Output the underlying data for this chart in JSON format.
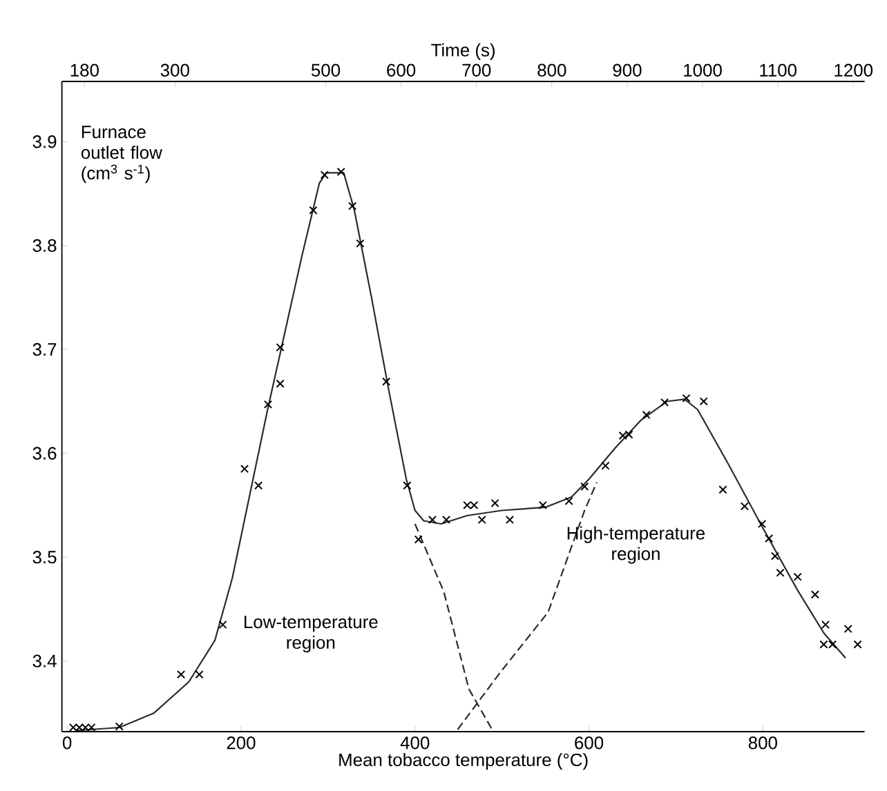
{
  "chart_data": {
    "type": "scatter",
    "xlabel": "Mean tobacco temperature (°C)",
    "ylabel": "Furnace outlet flow (cm$^{3}$ s$^{-1}$)",
    "x2label": "Time (s)",
    "xlim": [
      -6,
      917
    ],
    "ylim": [
      3.332,
      3.958
    ],
    "xticks": [
      0,
      200,
      400,
      600,
      800
    ],
    "yticks": [
      3.4,
      3.5,
      3.6,
      3.7,
      3.8,
      3.9
    ],
    "x2lim": [
      150,
      1215
    ],
    "x2ticks": [
      180,
      300,
      500,
      600,
      700,
      800,
      900,
      1000,
      1100,
      1200
    ],
    "marker": "cross",
    "series": [
      {
        "color": "#000000",
        "x": [
          7,
          14,
          21,
          28,
          60,
          131,
          152,
          179,
          204,
          220,
          231,
          245,
          245,
          283,
          296,
          315,
          328,
          337,
          367,
          391,
          404,
          420,
          436,
          460,
          468,
          477,
          492,
          509,
          547,
          577,
          595,
          619,
          639,
          646,
          666,
          687,
          712,
          732,
          754,
          779,
          799,
          807,
          814,
          820,
          840,
          860,
          872,
          898,
          870,
          880,
          909
        ],
        "values": [
          3.336,
          3.336,
          3.336,
          3.336,
          3.337,
          3.387,
          3.387,
          3.435,
          3.585,
          3.569,
          3.647,
          3.667,
          3.702,
          3.834,
          3.868,
          3.871,
          3.838,
          3.802,
          3.669,
          3.569,
          3.517,
          3.536,
          3.536,
          3.55,
          3.55,
          3.536,
          3.552,
          3.536,
          3.55,
          3.554,
          3.568,
          3.588,
          3.617,
          3.618,
          3.637,
          3.649,
          3.653,
          3.65,
          3.565,
          3.549,
          3.532,
          3.518,
          3.501,
          3.485,
          3.481,
          3.464,
          3.435,
          3.431,
          3.416,
          3.416,
          3.416
        ]
      },
      {
        "type": "line",
        "color": "#2a2a2a",
        "line_style": "solid",
        "marker": "none",
        "x": [
          10,
          60,
          100,
          140,
          170,
          190,
          210,
          230,
          250,
          270,
          290,
          298,
          318,
          330,
          350,
          370,
          390,
          400,
          410,
          430,
          460,
          500,
          550,
          580,
          600,
          630,
          660,
          690,
          710,
          725,
          760,
          800,
          840,
          870,
          895
        ],
        "values": [
          3.333,
          3.336,
          3.35,
          3.38,
          3.42,
          3.48,
          3.56,
          3.64,
          3.715,
          3.79,
          3.86,
          3.87,
          3.87,
          3.835,
          3.75,
          3.66,
          3.575,
          3.545,
          3.535,
          3.532,
          3.54,
          3.545,
          3.548,
          3.558,
          3.575,
          3.605,
          3.632,
          3.65,
          3.652,
          3.642,
          3.59,
          3.528,
          3.468,
          3.427,
          3.403
        ]
      },
      {
        "type": "line",
        "color": "#2a2a2a",
        "line_style": "dashed",
        "marker": "none",
        "x": [
          400,
          433,
          462,
          488
        ],
        "values": [
          3.532,
          3.467,
          3.373,
          3.335
        ]
      },
      {
        "type": "line",
        "color": "#2a2a2a",
        "line_style": "dashed",
        "marker": "none",
        "x": [
          449,
          498,
          553,
          595,
          609
        ],
        "values": [
          3.334,
          3.389,
          3.447,
          3.545,
          3.572
        ]
      }
    ],
    "annotations": [
      "Low-temperature region",
      "High-temperature region"
    ]
  }
}
